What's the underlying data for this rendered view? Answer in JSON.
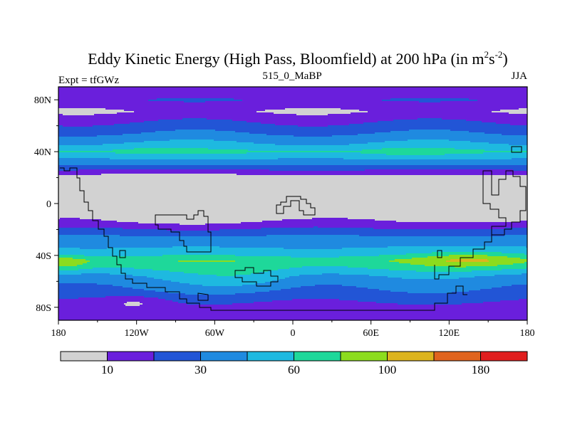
{
  "chart_data": {
    "type": "heatmap",
    "title": "Eddy Kinetic Energy (High Pass, Bloomfield) at 200 hPa (in m",
    "title_units": {
      "base": "s",
      "exp1": "2",
      "exp2": "-2",
      "close": ")"
    },
    "subtitle": "515_0_MaBP",
    "left_label": "Expt = tfGWz",
    "right_label": "JJA",
    "xlim": [
      -180,
      180
    ],
    "ylim": [
      -90,
      90
    ],
    "x_ticks": [
      {
        "value": -180,
        "label": "180"
      },
      {
        "value": -120,
        "label": "120W"
      },
      {
        "value": -60,
        "label": "60W"
      },
      {
        "value": 0,
        "label": "0"
      },
      {
        "value": 60,
        "label": "60E"
      },
      {
        "value": 120,
        "label": "120E"
      },
      {
        "value": 180,
        "label": "180"
      }
    ],
    "y_ticks": [
      {
        "value": 80,
        "label": "80N"
      },
      {
        "value": 40,
        "label": "40N"
      },
      {
        "value": 0,
        "label": "0"
      },
      {
        "value": -40,
        "label": "40S"
      },
      {
        "value": -80,
        "label": "80S"
      }
    ],
    "levels": [
      5,
      10,
      20,
      30,
      45,
      60,
      80,
      100,
      140,
      180
    ],
    "level_labels": [
      "10",
      "30",
      "60",
      "100",
      "180"
    ],
    "level_label_boxes": [
      1,
      3,
      5,
      7,
      9
    ],
    "colors": [
      "#d2d2d2",
      "#6a1fdc",
      "#2255d6",
      "#1f8ae0",
      "#1eb9e0",
      "#1ed89a",
      "#8cdc1e",
      "#dcb41e",
      "#e0641e",
      "#e01e1e"
    ],
    "band_profile": [
      {
        "lat": 90,
        "v": 1.0
      },
      {
        "lat": 84,
        "v": 1.5
      },
      {
        "lat": 80,
        "v": 2.0
      },
      {
        "lat": 76,
        "v": 1.5
      },
      {
        "lat": 71,
        "v": 1.0
      },
      {
        "lat": 66,
        "v": 1.6
      },
      {
        "lat": 60,
        "v": 2.3
      },
      {
        "lat": 54,
        "v": 3.0
      },
      {
        "lat": 50,
        "v": 3.6
      },
      {
        "lat": 45,
        "v": 4.2
      },
      {
        "lat": 40,
        "v": 5.2
      },
      {
        "lat": 36,
        "v": 4.3
      },
      {
        "lat": 32,
        "v": 3.6
      },
      {
        "lat": 28,
        "v": 2.6
      },
      {
        "lat": 24,
        "v": 1.5
      },
      {
        "lat": 20,
        "v": 0.6
      },
      {
        "lat": 14,
        "v": 0.2
      },
      {
        "lat": 6,
        "v": 0.1
      },
      {
        "lat": -2,
        "v": 0.3
      },
      {
        "lat": -8,
        "v": 0.6
      },
      {
        "lat": -14,
        "v": 1.2
      },
      {
        "lat": -18,
        "v": 1.8
      },
      {
        "lat": -22,
        "v": 2.5
      },
      {
        "lat": -26,
        "v": 3.2
      },
      {
        "lat": -32,
        "v": 3.8
      },
      {
        "lat": -38,
        "v": 4.4
      },
      {
        "lat": -44,
        "v": 5.8
      },
      {
        "lat": -50,
        "v": 5.0
      },
      {
        "lat": -56,
        "v": 3.9
      },
      {
        "lat": -62,
        "v": 3.3
      },
      {
        "lat": -68,
        "v": 2.8
      },
      {
        "lat": -74,
        "v": 2.2
      },
      {
        "lat": -80,
        "v": 1.6
      },
      {
        "lat": -86,
        "v": 1.2
      },
      {
        "lat": -90,
        "v": 1.0
      }
    ],
    "features": [
      {
        "lon": -125,
        "lat": 5,
        "rx": 40,
        "ry": 13,
        "amp": -2.2
      },
      {
        "lon": -70,
        "lat": 2,
        "rx": 45,
        "ry": 12,
        "amp": -2.2
      },
      {
        "lon": -10,
        "lat": 3,
        "rx": 35,
        "ry": 10,
        "amp": -1.8
      },
      {
        "lon": 30,
        "lat": 4,
        "rx": 35,
        "ry": 10,
        "amp": -1.2
      },
      {
        "lon": 158,
        "lat": 2,
        "rx": 35,
        "ry": 12,
        "amp": -2.0
      },
      {
        "lon": 180,
        "lat": 3,
        "rx": 18,
        "ry": 10,
        "amp": -1.5
      },
      {
        "lon": -180,
        "lat": 4,
        "rx": 18,
        "ry": 10,
        "amp": -1.5
      },
      {
        "lon": 140,
        "lat": -43,
        "rx": 45,
        "ry": 7,
        "amp": 1.4
      },
      {
        "lon": -175,
        "lat": -46,
        "rx": 20,
        "ry": 6,
        "amp": 1.3
      },
      {
        "lon": -40,
        "lat": -58,
        "rx": 45,
        "ry": 10,
        "amp": 0.9
      },
      {
        "lon": -120,
        "lat": -76,
        "rx": 25,
        "ry": 5,
        "amp": -1.0
      },
      {
        "lon": 90,
        "lat": 40,
        "rx": 30,
        "ry": 5,
        "amp": 0.4
      },
      {
        "lon": -110,
        "lat": 42,
        "rx": 35,
        "ry": 5,
        "amp": 0.3
      }
    ]
  }
}
